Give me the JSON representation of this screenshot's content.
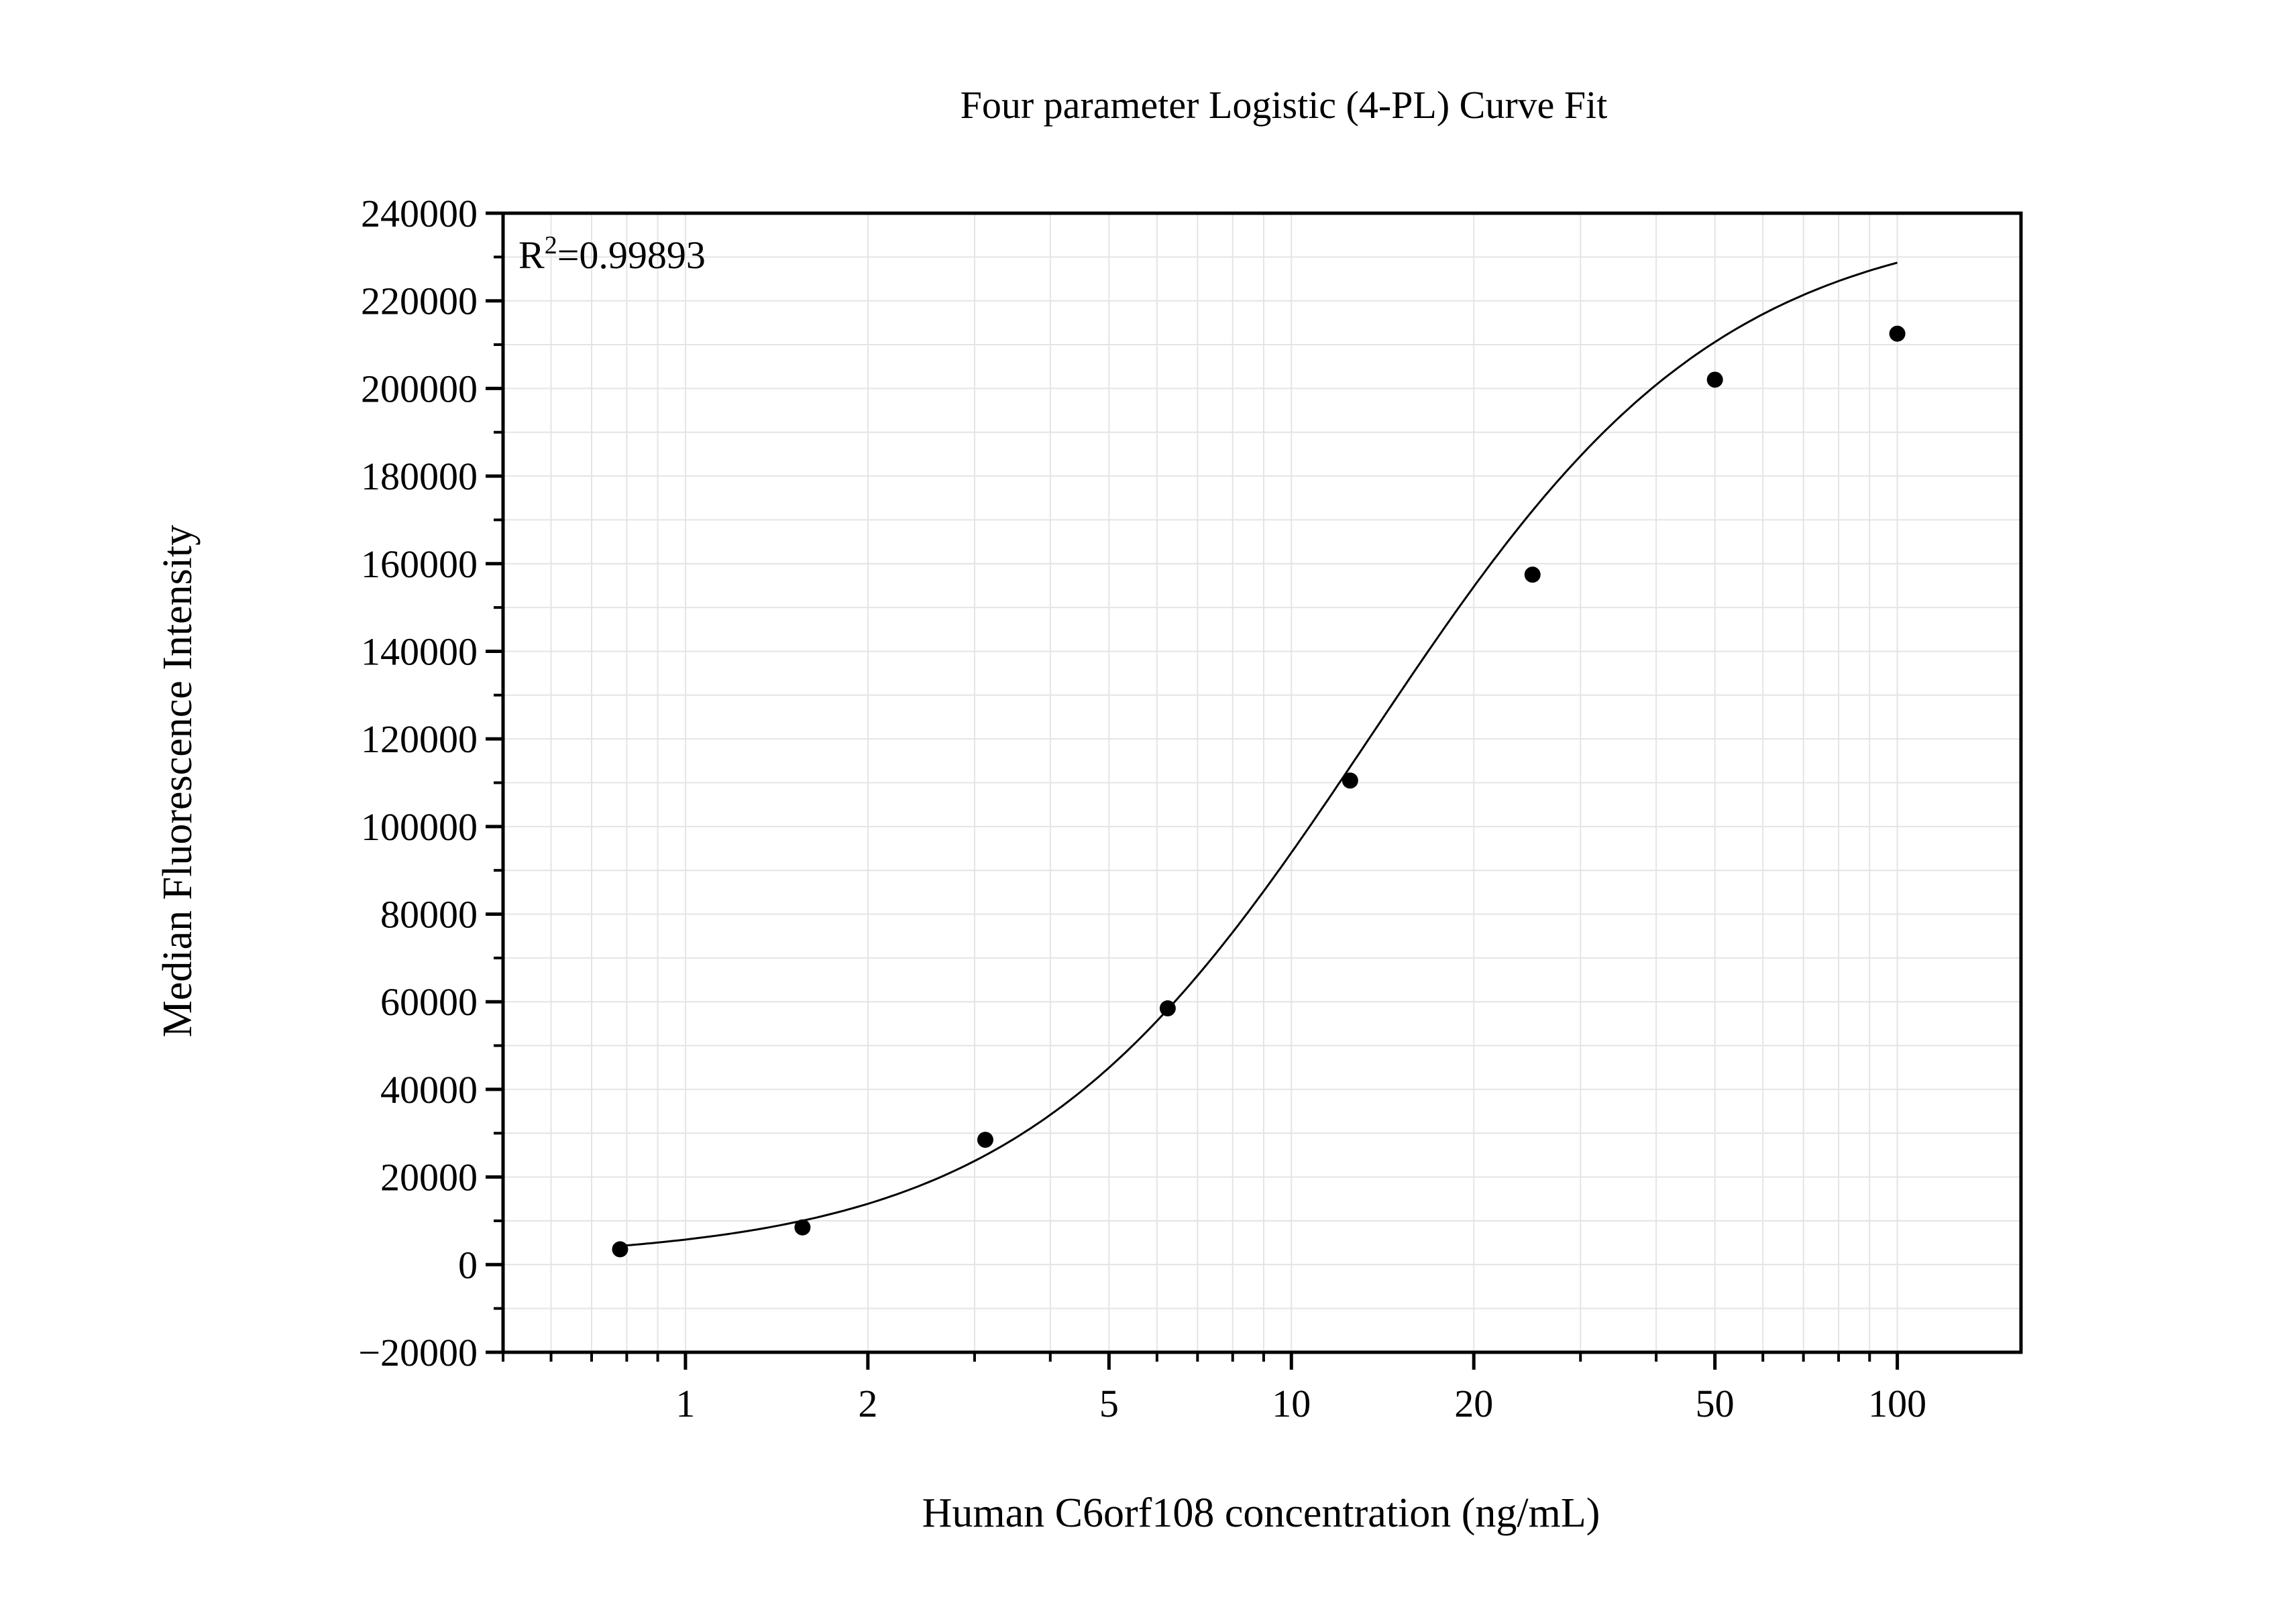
{
  "chart_data": {
    "type": "scatter",
    "title": "Four parameter Logistic (4-PL) Curve Fit",
    "xlabel": "Human C6orf108 concentration (ng/mL)",
    "ylabel": "Median Fluorescence Intensity",
    "annotation": {
      "prefix": "R",
      "superscript": "2",
      "value": "=0.99893"
    },
    "x_scale": "log",
    "xlim": [
      0.5,
      160
    ],
    "ylim": [
      -20000,
      240000
    ],
    "x_ticks": [
      1,
      2,
      5,
      10,
      20,
      50,
      100
    ],
    "x_tick_labels": [
      "1",
      "2",
      "5",
      "10",
      "20",
      "50",
      "100"
    ],
    "y_ticks": [
      -20000,
      0,
      20000,
      40000,
      60000,
      80000,
      100000,
      120000,
      140000,
      160000,
      180000,
      200000,
      220000,
      240000
    ],
    "y_tick_labels": [
      "−20000",
      "0",
      "20000",
      "40000",
      "60000",
      "80000",
      "100000",
      "120000",
      "140000",
      "160000",
      "180000",
      "200000",
      "220000",
      "240000"
    ],
    "grid": true,
    "series": [
      {
        "points_x": [
          0.78,
          1.56,
          3.125,
          6.25,
          12.5,
          25,
          50,
          100
        ],
        "points_y": [
          3500,
          8500,
          28500,
          58500,
          110500,
          157500,
          202000,
          212500
        ]
      }
    ],
    "fit": {
      "model": "4PL",
      "bottom": 1000,
      "top": 240000,
      "ec50": 13.5,
      "hill": 1.5,
      "x_range": [
        0.78,
        100
      ]
    },
    "colors": {
      "points": "#000000",
      "line": "#000000",
      "grid": "#e4e4e4",
      "axis": "#000000"
    }
  }
}
